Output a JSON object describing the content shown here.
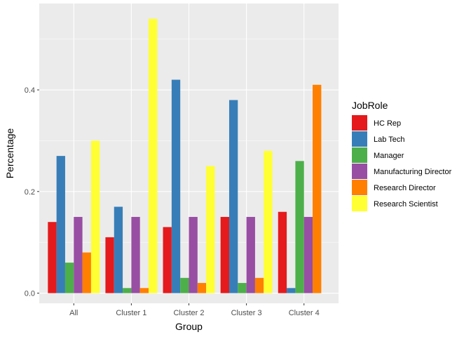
{
  "chart_data": {
    "type": "bar",
    "xlabel": "Group",
    "ylabel": "Percentage",
    "categories": [
      "All",
      "Cluster 1",
      "Cluster 2",
      "Cluster 3",
      "Cluster 4"
    ],
    "ylim": [
      -0.02,
      0.57
    ],
    "yticks": [
      0.0,
      0.2,
      0.4
    ],
    "ytick_labels": [
      "0.0",
      "0.2",
      "0.4"
    ],
    "grid": true,
    "legend": {
      "title": "JobRole",
      "position": "right"
    },
    "series": [
      {
        "name": "HC Rep",
        "color": "#E41A1C",
        "values": [
          0.14,
          0.11,
          0.13,
          0.15,
          0.16
        ]
      },
      {
        "name": "Lab Tech",
        "color": "#377EB8",
        "values": [
          0.27,
          0.17,
          0.42,
          0.38,
          0.01
        ]
      },
      {
        "name": "Manager",
        "color": "#4DAF4A",
        "values": [
          0.06,
          0.01,
          0.03,
          0.02,
          0.26
        ]
      },
      {
        "name": "Manufacturing Director",
        "color": "#984EA3",
        "values": [
          0.15,
          0.15,
          0.15,
          0.15,
          0.15
        ]
      },
      {
        "name": "Research Director",
        "color": "#FF7F00",
        "values": [
          0.08,
          0.01,
          0.02,
          0.03,
          0.41
        ]
      },
      {
        "name": "Research Scientist",
        "color": "#FFFF33",
        "values": [
          0.3,
          0.54,
          0.25,
          0.28,
          0.0
        ]
      }
    ]
  }
}
